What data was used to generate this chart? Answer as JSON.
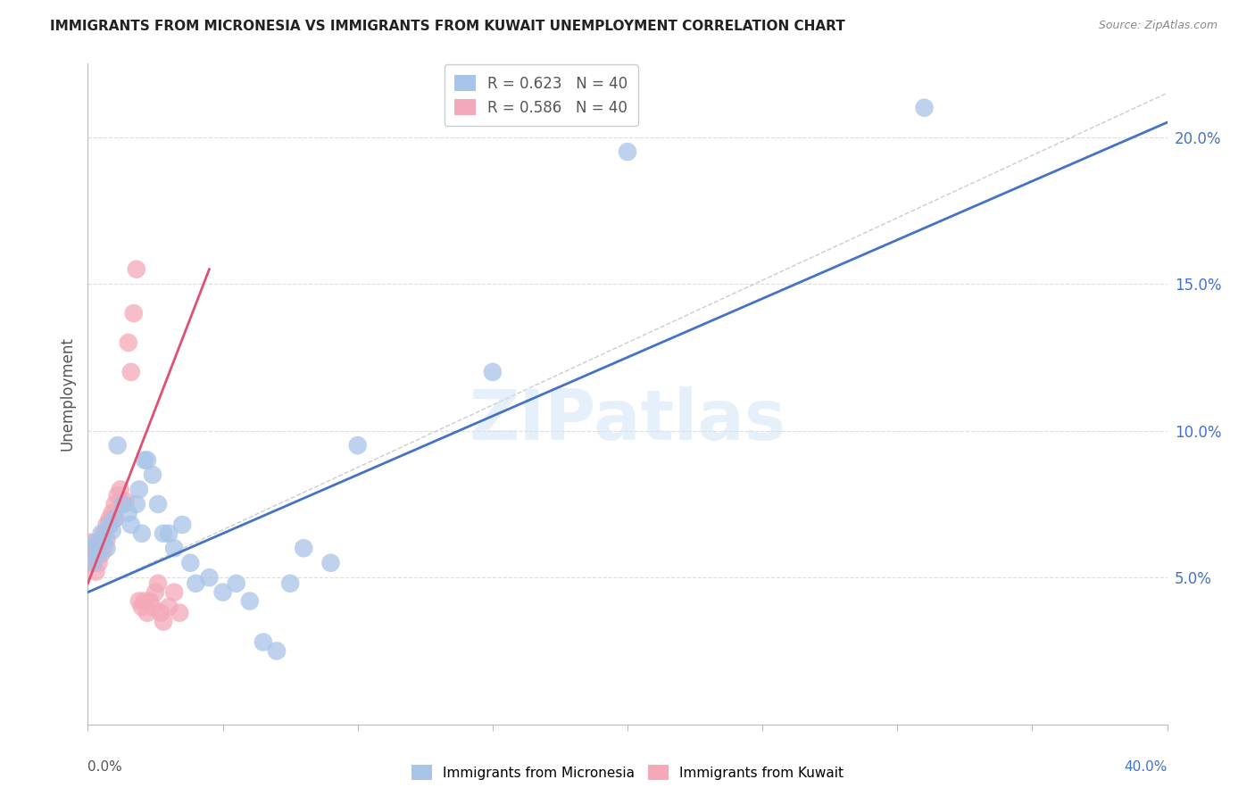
{
  "title": "IMMIGRANTS FROM MICRONESIA VS IMMIGRANTS FROM KUWAIT UNEMPLOYMENT CORRELATION CHART",
  "source": "Source: ZipAtlas.com",
  "ylabel": "Unemployment",
  "right_yticks": [
    "5.0%",
    "10.0%",
    "15.0%",
    "20.0%"
  ],
  "right_ytick_vals": [
    0.05,
    0.1,
    0.15,
    0.2
  ],
  "xlim": [
    0.0,
    0.4
  ],
  "ylim": [
    0.0,
    0.225
  ],
  "blue_color": "#A8C4E8",
  "pink_color": "#F4A8B8",
  "blue_line_color": "#4472C4",
  "pink_line_color": "#E05070",
  "dashed_line_color": "#cccccc",
  "legend_blue_R": "R = 0.623",
  "legend_blue_N": "N = 40",
  "legend_pink_R": "R = 0.586",
  "legend_pink_N": "N = 40",
  "watermark": "ZIPatlas",
  "blue_scatter_x": [
    0.001,
    0.002,
    0.003,
    0.004,
    0.005,
    0.006,
    0.007,
    0.008,
    0.009,
    0.01,
    0.011,
    0.013,
    0.015,
    0.016,
    0.018,
    0.019,
    0.02,
    0.021,
    0.022,
    0.024,
    0.026,
    0.028,
    0.03,
    0.032,
    0.035,
    0.038,
    0.04,
    0.045,
    0.05,
    0.055,
    0.06,
    0.065,
    0.07,
    0.075,
    0.08,
    0.09,
    0.1,
    0.15,
    0.2,
    0.31
  ],
  "blue_scatter_y": [
    0.06,
    0.055,
    0.062,
    0.058,
    0.065,
    0.063,
    0.06,
    0.068,
    0.066,
    0.07,
    0.095,
    0.075,
    0.072,
    0.068,
    0.075,
    0.08,
    0.065,
    0.09,
    0.09,
    0.085,
    0.075,
    0.065,
    0.065,
    0.06,
    0.068,
    0.055,
    0.048,
    0.05,
    0.045,
    0.048,
    0.042,
    0.028,
    0.025,
    0.048,
    0.06,
    0.055,
    0.095,
    0.12,
    0.195,
    0.21
  ],
  "pink_scatter_x": [
    0.001,
    0.001,
    0.002,
    0.002,
    0.003,
    0.003,
    0.004,
    0.004,
    0.005,
    0.005,
    0.006,
    0.006,
    0.007,
    0.007,
    0.008,
    0.008,
    0.009,
    0.01,
    0.01,
    0.011,
    0.012,
    0.013,
    0.014,
    0.015,
    0.016,
    0.017,
    0.018,
    0.019,
    0.02,
    0.021,
    0.022,
    0.023,
    0.024,
    0.025,
    0.026,
    0.027,
    0.028,
    0.03,
    0.032,
    0.034
  ],
  "pink_scatter_y": [
    0.062,
    0.058,
    0.06,
    0.055,
    0.058,
    0.052,
    0.06,
    0.055,
    0.063,
    0.058,
    0.065,
    0.06,
    0.068,
    0.063,
    0.07,
    0.068,
    0.072,
    0.075,
    0.07,
    0.078,
    0.08,
    0.075,
    0.076,
    0.13,
    0.12,
    0.14,
    0.155,
    0.042,
    0.04,
    0.042,
    0.038,
    0.042,
    0.04,
    0.045,
    0.048,
    0.038,
    0.035,
    0.04,
    0.045,
    0.038
  ],
  "blue_line_x": [
    0.0,
    0.4
  ],
  "blue_line_y": [
    0.045,
    0.205
  ],
  "pink_line_x": [
    0.0,
    0.045
  ],
  "pink_line_y": [
    0.048,
    0.155
  ],
  "dashed_line_x": [
    0.0,
    0.4
  ],
  "dashed_line_y": [
    0.045,
    0.215
  ],
  "grid_yticks": [
    0.05,
    0.1,
    0.15,
    0.2
  ],
  "xtick_positions": [
    0.0,
    0.05,
    0.1,
    0.15,
    0.2,
    0.25,
    0.3,
    0.35,
    0.4
  ]
}
